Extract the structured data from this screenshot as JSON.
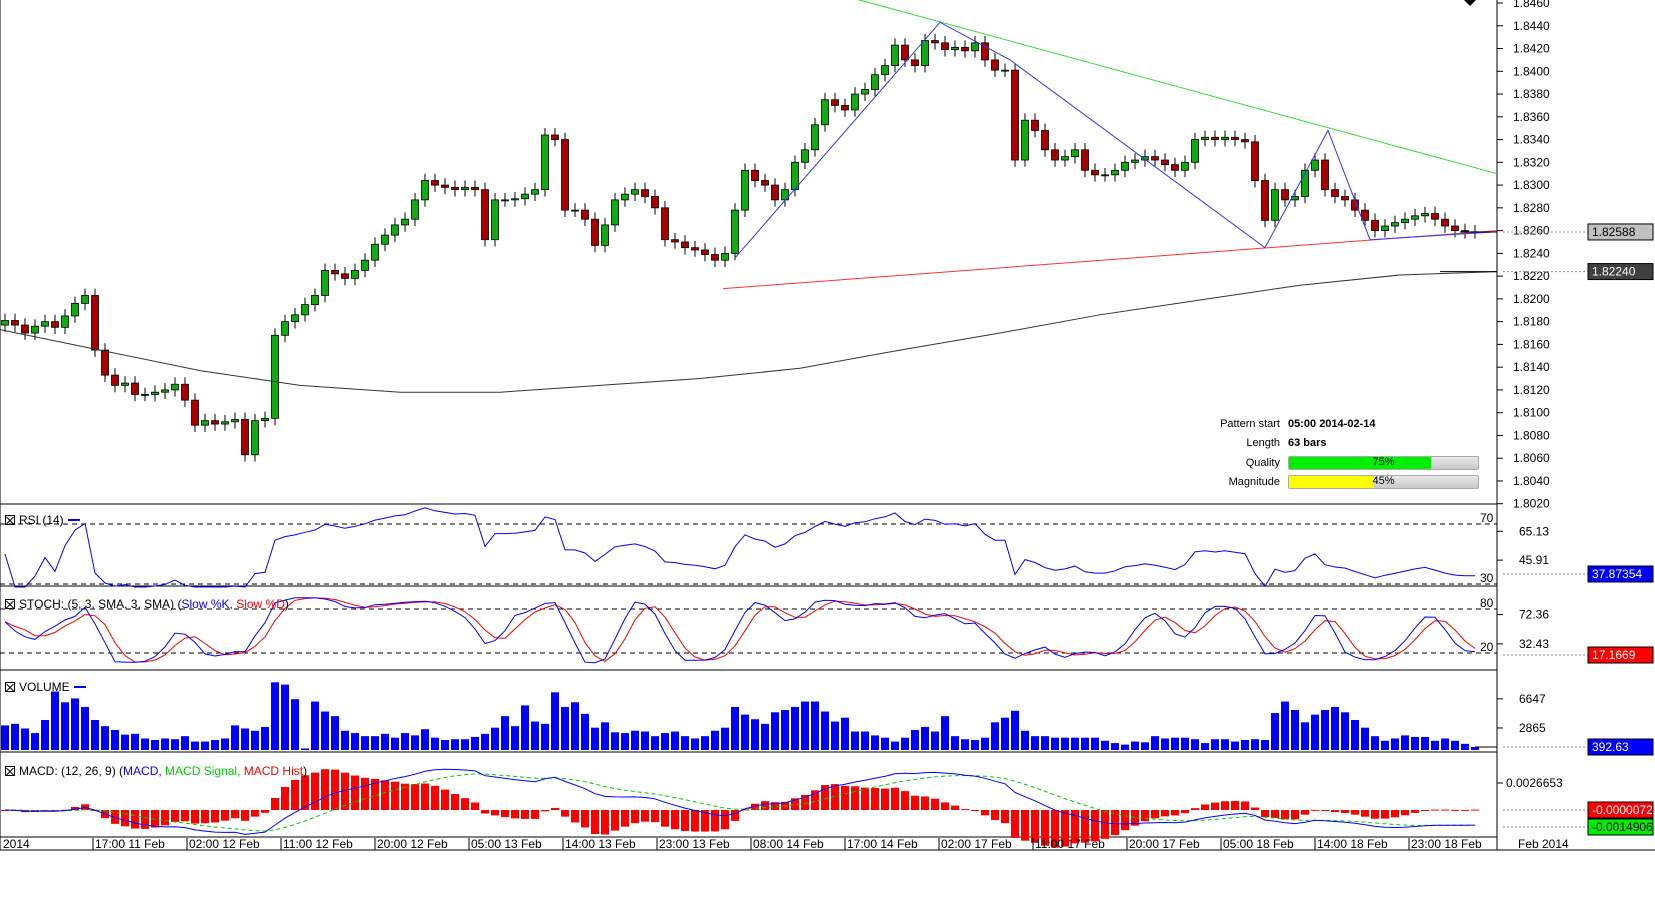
{
  "colors": {
    "bull": "#11aa11",
    "bear": "#aa0000",
    "rsi": "#0000ff",
    "stoch_k": "#0000ff",
    "stoch_d": "#ff0000",
    "volume": "#0000ff",
    "macd": "#0000ff",
    "signal": "#00cc00",
    "hist": "#ff0000",
    "ma": "#333333",
    "resistance": "#33dd33",
    "support": "#ff3333",
    "zigzag": "#3333ff"
  },
  "price_axis": {
    "ticks": [
      "1.8460",
      "1.8440",
      "1.8420",
      "1.8400",
      "1.8380",
      "1.8360",
      "1.8340",
      "1.8320",
      "1.8300",
      "1.8280",
      "1.8260",
      "1.8240",
      "1.8220",
      "1.8200",
      "1.8180",
      "1.8160",
      "1.8140",
      "1.8120",
      "1.8100",
      "1.8080",
      "1.8060",
      "1.8040",
      "1.8020"
    ],
    "current_price": "1.82588",
    "ma_value": "1.82240"
  },
  "closes": [
    1.8181,
    1.8177,
    1.817,
    1.8176,
    1.818,
    1.8175,
    1.8185,
    1.8196,
    1.8203,
    1.8155,
    1.8133,
    1.8124,
    1.8126,
    1.8116,
    1.8116,
    1.8118,
    1.812,
    1.8125,
    1.8111,
    1.8089,
    1.8093,
    1.809,
    1.8092,
    1.8094,
    1.8063,
    1.8093,
    1.8095,
    1.8168,
    1.818,
    1.8186,
    1.8195,
    1.8203,
    1.8225,
    1.8222,
    1.8218,
    1.8225,
    1.8234,
    1.8248,
    1.8256,
    1.8265,
    1.827,
    1.8287,
    1.8304,
    1.83,
    1.8298,
    1.8296,
    1.8298,
    1.8296,
    1.8252,
    1.8287,
    1.8287,
    1.8288,
    1.8292,
    1.8296,
    1.8344,
    1.834,
    1.8278,
    1.8278,
    1.827,
    1.8247,
    1.8265,
    1.8287,
    1.8292,
    1.8296,
    1.829,
    1.828,
    1.8252,
    1.825,
    1.8245,
    1.8243,
    1.8239,
    1.8234,
    1.824,
    1.8278,
    1.8313,
    1.8304,
    1.83,
    1.8287,
    1.8296,
    1.832,
    1.8331,
    1.8353,
    1.8375,
    1.837,
    1.8366,
    1.838,
    1.8384,
    1.8397,
    1.8405,
    1.8423,
    1.841,
    1.8405,
    1.8427,
    1.8425,
    1.8419,
    1.8421,
    1.8418,
    1.8425,
    1.841,
    1.8401,
    1.8401,
    1.8322,
    1.8357,
    1.8348,
    1.8331,
    1.8322,
    1.8325,
    1.8331,
    1.8313,
    1.8309,
    1.8309,
    1.8313,
    1.832,
    1.8322,
    1.8325,
    1.8322,
    1.8318,
    1.8313,
    1.832,
    1.834,
    1.8342,
    1.834,
    1.8342,
    1.834,
    1.8338,
    1.8304,
    1.8269,
    1.8296,
    1.8287,
    1.829,
    1.8313,
    1.8322,
    1.8296,
    1.829,
    1.8287,
    1.8278,
    1.8269,
    1.826,
    1.8264,
    1.8267,
    1.827,
    1.8273,
    1.8275,
    1.827,
    1.8264,
    1.826,
    1.8259,
    1.8259
  ],
  "volumes": [
    3200,
    3400,
    2800,
    2200,
    3900,
    7600,
    6200,
    6700,
    5600,
    3900,
    3100,
    2600,
    2000,
    2100,
    1500,
    1300,
    1500,
    1400,
    1800,
    1100,
    1100,
    1300,
    1500,
    3200,
    2800,
    2500,
    3000,
    8800,
    8500,
    6600,
    200,
    6300,
    5000,
    4400,
    2500,
    2200,
    1800,
    1800,
    2100,
    1600,
    2200,
    1900,
    2700,
    1600,
    1300,
    1400,
    1400,
    1700,
    2100,
    2900,
    4400,
    3100,
    5800,
    3700,
    3400,
    7500,
    5600,
    6200,
    4700,
    2900,
    3600,
    2300,
    2200,
    2500,
    2400,
    1800,
    2200,
    2400,
    1800,
    1500,
    1800,
    2500,
    2900,
    5600,
    4600,
    4000,
    3400,
    4900,
    5200,
    5600,
    6300,
    6300,
    5000,
    3700,
    4200,
    2400,
    2400,
    1900,
    1600,
    1100,
    1600,
    2600,
    3000,
    2400,
    4400,
    1800,
    1400,
    1300,
    1600,
    3600,
    4200,
    5100,
    2500,
    1800,
    1800,
    1600,
    1600,
    1600,
    1600,
    1600,
    1200,
    900,
    700,
    1100,
    1000,
    1800,
    1500,
    1600,
    1600,
    1400,
    900,
    1400,
    1400,
    1100,
    1300,
    1400,
    1300,
    4800,
    6300,
    5200,
    3600,
    4600,
    5200,
    5600,
    4900,
    3900,
    2900,
    1800,
    1200,
    1500,
    1900,
    1700,
    1700,
    1200,
    1500,
    1200,
    800,
    392.63
  ],
  "moving_average": [
    [
      -0.5,
      1.8173
    ],
    [
      9.5,
      1.8155
    ],
    [
      19.5,
      1.8137
    ],
    [
      29.5,
      1.8124
    ],
    [
      39.5,
      1.8118
    ],
    [
      49.5,
      1.8118
    ],
    [
      59.5,
      1.8124
    ],
    [
      69.5,
      1.813
    ],
    [
      79.5,
      1.8139
    ],
    [
      89.5,
      1.8155
    ],
    [
      99.5,
      1.817
    ],
    [
      109.5,
      1.8186
    ],
    [
      119.5,
      1.8199
    ],
    [
      129.5,
      1.8212
    ],
    [
      139.5,
      1.8221
    ],
    [
      149.2,
      1.8224
    ]
  ],
  "pattern": {
    "resistance": [
      [
        85.3,
        1.8463
      ],
      [
        149.2,
        1.831
      ]
    ],
    "support": [
      [
        71.8,
        1.8209
      ],
      [
        149.2,
        1.826
      ]
    ],
    "zigzag": [
      [
        73,
        1.8236
      ],
      [
        93.5,
        1.8443
      ],
      [
        100.5,
        1.841
      ],
      [
        126,
        1.8245
      ],
      [
        132.3,
        1.8348
      ],
      [
        136.5,
        1.8252
      ],
      [
        149.2,
        1.8259
      ]
    ],
    "pattern_start_label": "Pattern start",
    "pattern_start": "05:00 2014-02-14",
    "length_label": "Length",
    "length": "63 bars",
    "quality_label": "Quality",
    "quality": 75,
    "quality_text": "75%",
    "magnitude_label": "Magnitude",
    "magnitude": 45,
    "magnitude_text": "45%"
  },
  "rsi": {
    "title": "RSI (14)",
    "levels": [
      "70",
      "30"
    ],
    "ticks": [
      "65.13",
      "45.91"
    ],
    "current": "37.87354"
  },
  "stoch": {
    "title": "STOCH: (5, 3, SMA, 3, SMA) (",
    "k_label": "Slow %K",
    "sep": ", ",
    "d_label": "Slow %D",
    "close": ")",
    "levels": [
      "80",
      "20"
    ],
    "ticks": [
      "72.36",
      "32.43"
    ],
    "current": "17.1669"
  },
  "volume": {
    "title": "VOLUME",
    "ticks": [
      "6647",
      "2865"
    ],
    "current": "392.63"
  },
  "macd": {
    "title": "MACD: (12, 26, 9) (",
    "macd_label": "MACD",
    "signal_label": "MACD Signal",
    "hist_label": "MACD Hist",
    "close": ")",
    "ticks": [
      "0.0026653"
    ],
    "hist_current": "-0.0000072",
    "signal_current": "-0.0014906"
  },
  "time_axis": {
    "start": "2014",
    "labels": [
      "17:00 11 Feb",
      "02:00 12 Feb",
      "11:00 12 Feb",
      "20:00 12 Feb",
      "05:00 13 Feb",
      "14:00 13 Feb",
      "23:00 13 Feb",
      "08:00 14 Feb",
      "17:00 14 Feb",
      "02:00 17 Feb",
      "11:00 17 Feb",
      "20:00 17 Feb",
      "05:00 18 Feb",
      "14:00 18 Feb",
      "23:00 18 Feb"
    ],
    "end": "Feb 2014"
  }
}
